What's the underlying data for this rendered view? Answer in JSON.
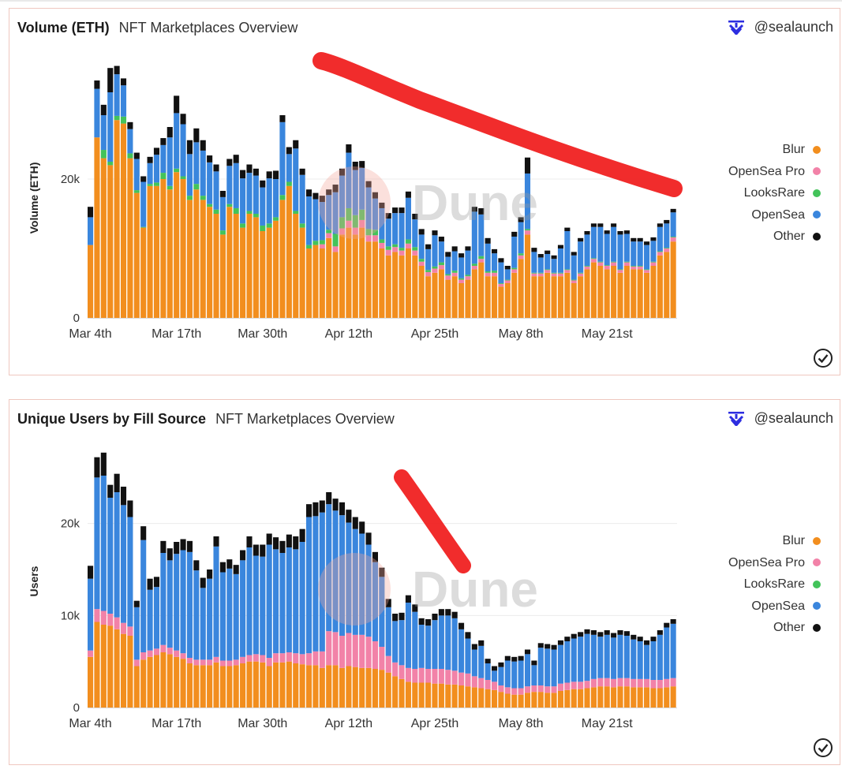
{
  "panels": [
    {
      "title": "Volume (ETH)",
      "subtitle": "NFT Marketplaces Overview",
      "brand": "@sealaunch",
      "watermark": "Dune"
    },
    {
      "title": "Unique Users by Fill Source",
      "subtitle": "NFT Marketplaces Overview",
      "brand": "@sealaunch",
      "watermark": "Dune"
    }
  ],
  "legend": [
    {
      "label": "Blur",
      "color": "#f28e1e"
    },
    {
      "label": "OpenSea Pro",
      "color": "#f282a8"
    },
    {
      "label": "LooksRare",
      "color": "#43c35a"
    },
    {
      "label": "OpenSea",
      "color": "#3a86dd"
    },
    {
      "label": "Other",
      "color": "#111111"
    }
  ],
  "chart_data": [
    {
      "type": "bar",
      "stacked": true,
      "title": "Volume (ETH)",
      "xlabel": "",
      "ylabel": "Volume (ETH)",
      "ylim": [
        0,
        40000
      ],
      "yticks": [
        0,
        20000
      ],
      "ytick_labels": [
        "0",
        "20k"
      ],
      "xtick_labels": [
        "Mar 4th",
        "Mar 17th",
        "Mar 30th",
        "Apr 12th",
        "Apr 25th",
        "May 8th",
        "May 21st"
      ],
      "xtick_index": [
        0,
        13,
        26,
        39,
        52,
        65,
        78
      ],
      "annotation": "red hand-drawn downward trend line",
      "series": [
        {
          "name": "Blur",
          "color": "#f28e1e",
          "values": [
            10500,
            26000,
            23000,
            22000,
            28500,
            28000,
            23000,
            18000,
            13000,
            19000,
            19000,
            20000,
            18500,
            21000,
            20000,
            17000,
            18500,
            17000,
            16000,
            15000,
            12000,
            16000,
            15000,
            13000,
            15000,
            14500,
            12500,
            13000,
            14000,
            17000,
            19000,
            15000,
            13000,
            10000,
            10500,
            10000,
            11500,
            9500,
            12000,
            13000,
            12000,
            13000,
            11000,
            11000,
            10000,
            9000,
            9500,
            9000,
            10000,
            9000,
            7500,
            6000,
            6500,
            7000,
            5500,
            6000,
            5000,
            5500,
            7000,
            8000,
            6000,
            6000,
            4500,
            5000,
            6500,
            8500,
            12000,
            6000,
            6000,
            6500,
            6000,
            6000,
            6500,
            5000,
            6000,
            7000,
            8000,
            7500,
            7000,
            7500,
            6500,
            7500,
            7000,
            7000,
            6500,
            7500,
            9000,
            9500,
            11000
          ]
        },
        {
          "name": "OpenSea Pro",
          "color": "#f282a8",
          "values": [
            0,
            0,
            0,
            0,
            0,
            0,
            0,
            0,
            0,
            0,
            0,
            0,
            0,
            0,
            0,
            0,
            0,
            0,
            0,
            0,
            0,
            0,
            0,
            0,
            0,
            0,
            0,
            0,
            0,
            0,
            0,
            0,
            0,
            0,
            0,
            600,
            700,
            800,
            900,
            1000,
            1000,
            1100,
            900,
            900,
            800,
            800,
            700,
            700,
            700,
            700,
            600,
            600,
            600,
            600,
            600,
            500,
            500,
            500,
            500,
            500,
            500,
            500,
            400,
            400,
            500,
            500,
            600,
            400,
            400,
            400,
            400,
            400,
            400,
            400,
            400,
            400,
            500,
            500,
            500,
            500,
            400,
            500,
            400,
            400,
            400,
            500,
            500,
            500,
            600
          ]
        },
        {
          "name": "LooksRare",
          "color": "#43c35a",
          "values": [
            0,
            0,
            1200,
            500,
            600,
            1000,
            700,
            400,
            100,
            300,
            500,
            900,
            500,
            500,
            400,
            600,
            800,
            600,
            400,
            600,
            600,
            400,
            800,
            600,
            400,
            500,
            800,
            600,
            500,
            700,
            600,
            400,
            600,
            500,
            600,
            600,
            500,
            1800,
            1600,
            1800,
            1800,
            1500,
            900,
            800,
            500,
            500,
            400,
            400,
            600,
            500,
            400,
            300,
            300,
            400,
            200,
            300,
            200,
            200,
            300,
            400,
            200,
            300,
            100,
            100,
            200,
            300,
            200,
            100,
            100,
            100,
            100,
            100,
            100,
            100,
            100,
            100,
            100,
            100,
            100,
            100,
            100,
            100,
            100,
            100,
            100,
            100,
            100,
            100,
            100
          ]
        },
        {
          "name": "OpenSea",
          "color": "#3a86dd",
          "values": [
            4000,
            7000,
            5000,
            10000,
            6000,
            4500,
            3500,
            4500,
            6500,
            3000,
            4000,
            4000,
            7000,
            8000,
            7500,
            6000,
            6000,
            6500,
            6000,
            5500,
            4800,
            5500,
            6500,
            6500,
            5500,
            5500,
            5500,
            6500,
            5500,
            10500,
            4000,
            9000,
            7000,
            7000,
            6000,
            5500,
            5000,
            6000,
            6000,
            8000,
            6500,
            6000,
            6000,
            4500,
            4500,
            4000,
            4500,
            5000,
            6000,
            4000,
            3500,
            3000,
            4500,
            3000,
            2500,
            2800,
            3000,
            3500,
            7500,
            6000,
            4000,
            2500,
            3000,
            1500,
            4500,
            4500,
            8000,
            3000,
            2200,
            2200,
            2000,
            3500,
            5500,
            3500,
            4500,
            4500,
            4500,
            5000,
            4500,
            5000,
            5000,
            4000,
            3500,
            3500,
            3500,
            3000,
            3500,
            3500,
            3500
          ]
        },
        {
          "name": "Other",
          "color": "#111111",
          "values": [
            1500,
            1200,
            1500,
            3500,
            1200,
            1000,
            1000,
            900,
            800,
            900,
            1000,
            1000,
            1500,
            2500,
            1500,
            2000,
            2000,
            1500,
            1000,
            1000,
            900,
            1000,
            1200,
            1200,
            1200,
            1000,
            1000,
            1000,
            1200,
            1000,
            1000,
            1200,
            900,
            1000,
            900,
            900,
            800,
            1100,
            1000,
            1200,
            1200,
            1000,
            900,
            900,
            800,
            800,
            800,
            800,
            900,
            800,
            800,
            700,
            700,
            700,
            700,
            700,
            600,
            600,
            700,
            900,
            800,
            600,
            600,
            500,
            700,
            700,
            2300,
            600,
            500,
            500,
            500,
            500,
            500,
            500,
            500,
            500,
            500,
            500,
            500,
            500,
            500,
            500,
            500,
            500,
            500,
            500,
            500,
            500,
            500
          ]
        }
      ]
    },
    {
      "type": "bar",
      "stacked": true,
      "title": "Unique Users by Fill Source",
      "xlabel": "",
      "ylabel": "Users",
      "ylim": [
        0,
        30000
      ],
      "yticks": [
        0,
        10000,
        20000
      ],
      "ytick_labels": [
        "0",
        "10k",
        "20k"
      ],
      "xtick_labels": [
        "Mar 4th",
        "Mar 17th",
        "Mar 30th",
        "Apr 12th",
        "Apr 25th",
        "May 8th",
        "May 21st"
      ],
      "xtick_index": [
        0,
        13,
        26,
        39,
        52,
        65,
        78
      ],
      "annotation": "red hand-drawn downward stroke",
      "series": [
        {
          "name": "Blur",
          "color": "#f28e1e",
          "values": [
            5500,
            9300,
            9000,
            8900,
            8500,
            8000,
            7800,
            4500,
            5200,
            5500,
            5700,
            6000,
            5800,
            5500,
            5300,
            4800,
            4600,
            4600,
            4600,
            4900,
            4500,
            4500,
            4600,
            4800,
            5000,
            5000,
            4900,
            4500,
            4900,
            4900,
            5000,
            4800,
            4700,
            4600,
            4600,
            4300,
            4600,
            4600,
            4300,
            4500,
            4400,
            4300,
            4300,
            4200,
            4100,
            3800,
            3400,
            3100,
            2800,
            2700,
            2700,
            2700,
            2600,
            2600,
            2500,
            2500,
            2400,
            2300,
            2200,
            2100,
            2000,
            1900,
            1700,
            1500,
            1400,
            1400,
            1600,
            1700,
            1700,
            1600,
            1600,
            1800,
            1900,
            2000,
            2000,
            2100,
            2200,
            2300,
            2300,
            2200,
            2300,
            2300,
            2200,
            2200,
            2200,
            2100,
            2100,
            2200,
            2300
          ]
        },
        {
          "name": "OpenSea Pro",
          "color": "#f282a8",
          "values": [
            700,
            1400,
            1500,
            1300,
            1300,
            1200,
            1000,
            700,
            800,
            700,
            700,
            800,
            700,
            700,
            600,
            600,
            600,
            600,
            600,
            600,
            600,
            600,
            600,
            700,
            700,
            800,
            800,
            900,
            1000,
            1000,
            1000,
            1100,
            1100,
            1300,
            1500,
            1800,
            3700,
            3600,
            3500,
            3600,
            3500,
            3600,
            3400,
            3000,
            2500,
            1800,
            1500,
            1500,
            1500,
            1500,
            1600,
            1500,
            1600,
            1600,
            1600,
            1500,
            1400,
            1400,
            1200,
            1100,
            1000,
            900,
            700,
            700,
            700,
            700,
            700,
            700,
            700,
            700,
            700,
            800,
            800,
            800,
            800,
            800,
            900,
            900,
            900,
            900,
            900,
            900,
            900,
            900,
            900,
            900,
            900,
            900,
            900
          ]
        },
        {
          "name": "LooksRare",
          "color": "#43c35a",
          "values": [
            0,
            0,
            0,
            0,
            0,
            0,
            0,
            0,
            0,
            0,
            0,
            0,
            0,
            0,
            0,
            0,
            0,
            0,
            0,
            0,
            0,
            0,
            0,
            0,
            0,
            0,
            0,
            0,
            0,
            0,
            0,
            0,
            0,
            0,
            0,
            0,
            0,
            0,
            0,
            0,
            0,
            0,
            0,
            0,
            0,
            0,
            0,
            0,
            0,
            0,
            0,
            0,
            0,
            0,
            0,
            0,
            0,
            0,
            0,
            0,
            0,
            0,
            0,
            0,
            0,
            0,
            0,
            0,
            0,
            0,
            0,
            0,
            0,
            0,
            0,
            0,
            0,
            0,
            0,
            0,
            0,
            0,
            0,
            0,
            0,
            0,
            0,
            0,
            0
          ]
        },
        {
          "name": "OpenSea",
          "color": "#3a86dd",
          "values": [
            7800,
            14300,
            14700,
            12600,
            13600,
            12800,
            11900,
            5700,
            12200,
            6600,
            6700,
            10000,
            9500,
            10500,
            11200,
            11500,
            9700,
            7800,
            8800,
            12000,
            9600,
            10000,
            9300,
            10500,
            11700,
            10700,
            10700,
            12300,
            11300,
            10900,
            11400,
            11300,
            12200,
            14800,
            14700,
            15100,
            13800,
            13200,
            13100,
            12000,
            11500,
            11000,
            10000,
            8600,
            7600,
            5300,
            4500,
            4900,
            7100,
            6200,
            4700,
            4700,
            5300,
            5800,
            5900,
            5700,
            4700,
            3800,
            2900,
            3500,
            1800,
            1200,
            2000,
            2900,
            2900,
            3000,
            3500,
            2200,
            4100,
            4100,
            4000,
            4200,
            4500,
            4700,
            4900,
            5100,
            4800,
            4500,
            4700,
            4500,
            4700,
            4600,
            4300,
            4100,
            3700,
            4200,
            4900,
            5600,
            5900
          ]
        },
        {
          "name": "Other",
          "color": "#111111",
          "values": [
            1400,
            2200,
            2500,
            1400,
            2000,
            2000,
            1800,
            700,
            1500,
            1200,
            1100,
            1300,
            1300,
            1300,
            1200,
            1200,
            1100,
            1100,
            1000,
            1100,
            1100,
            1000,
            1000,
            1100,
            1200,
            1200,
            1300,
            1200,
            1300,
            1300,
            1400,
            1400,
            1400,
            1400,
            1500,
            1300,
            1300,
            1300,
            1400,
            1400,
            1300,
            1300,
            1300,
            1100,
            1000,
            900,
            800,
            800,
            800,
            800,
            700,
            700,
            700,
            700,
            700,
            700,
            700,
            700,
            600,
            600,
            500,
            500,
            500,
            500,
            500,
            500,
            500,
            500,
            500,
            500,
            500,
            500,
            500,
            500,
            500,
            500,
            500,
            500,
            500,
            500,
            500,
            500,
            500,
            500,
            500,
            500,
            500,
            500,
            500
          ]
        }
      ]
    }
  ]
}
